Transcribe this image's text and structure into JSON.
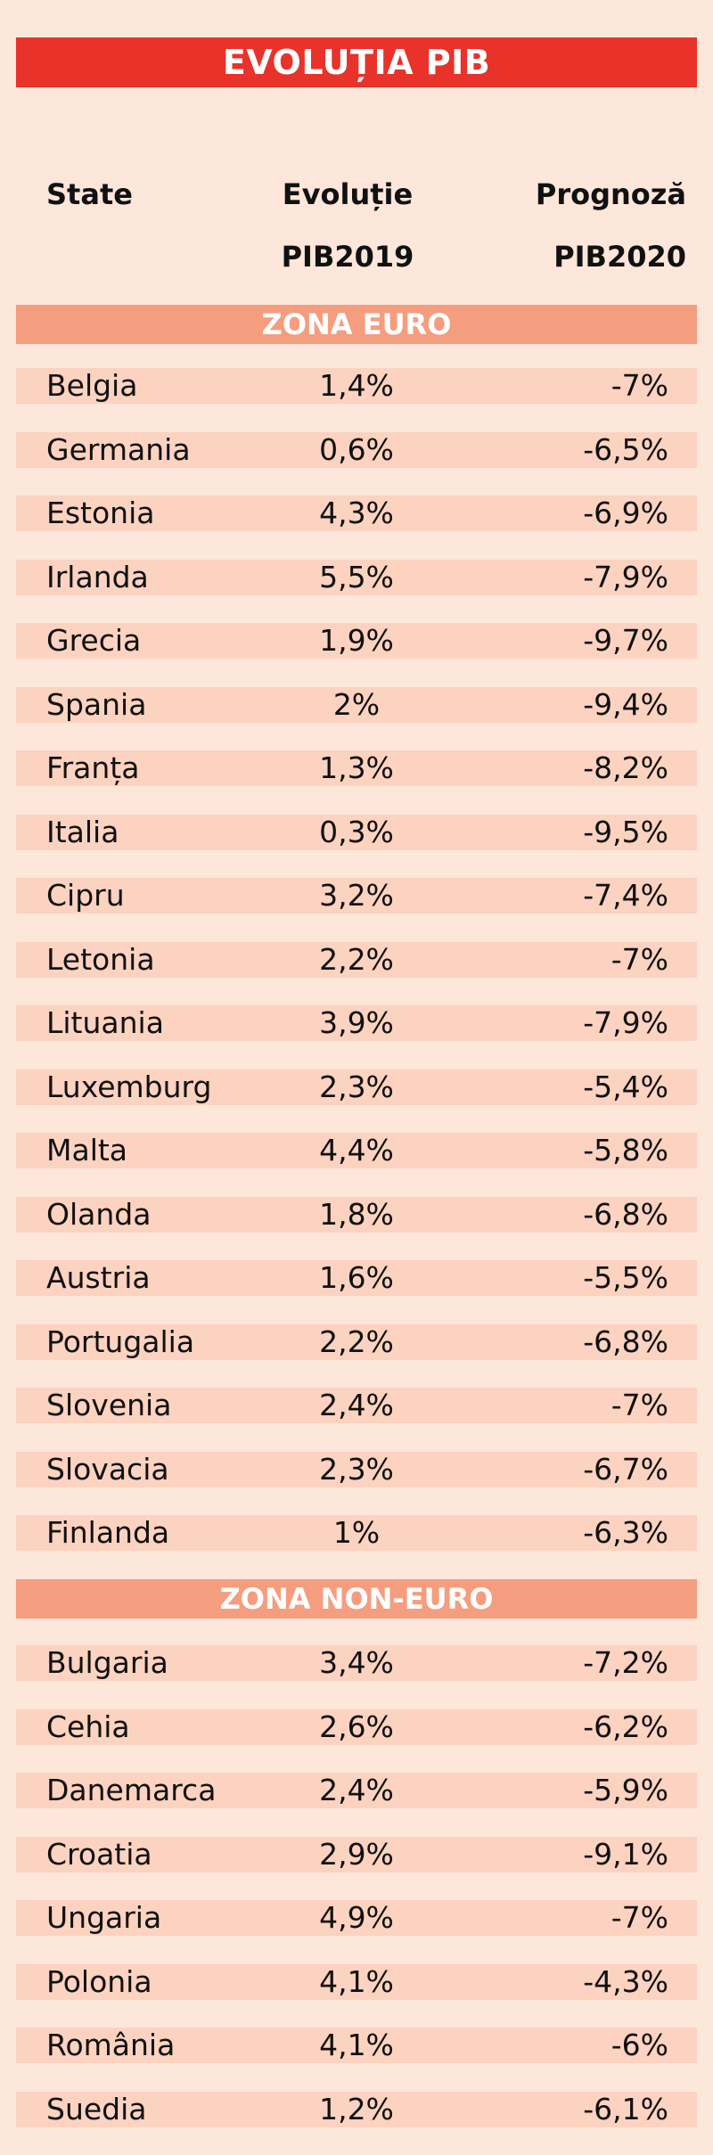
{
  "title": "EVOLUȚIA PIB",
  "header": {
    "state": "State",
    "col1_line1": "Evoluție",
    "col1_line2": "PIB2019",
    "col2_line1": "Prognoză",
    "col2_line2": "PIB2020"
  },
  "chart_data": {
    "type": "table",
    "title": "EVOLUȚIA PIB",
    "columns": [
      "State",
      "Evoluție PIB2019",
      "Prognoză PIB2020"
    ],
    "sections": [
      {
        "name": "ZONA EURO",
        "rows": [
          {
            "state": "Belgia",
            "gdp2019": "1,4%",
            "forecast2020": "-7%"
          },
          {
            "state": "Germania",
            "gdp2019": "0,6%",
            "forecast2020": "-6,5%"
          },
          {
            "state": "Estonia",
            "gdp2019": "4,3%",
            "forecast2020": "-6,9%"
          },
          {
            "state": "Irlanda",
            "gdp2019": "5,5%",
            "forecast2020": "-7,9%"
          },
          {
            "state": "Grecia",
            "gdp2019": "1,9%",
            "forecast2020": "-9,7%"
          },
          {
            "state": "Spania",
            "gdp2019": "2%",
            "forecast2020": "-9,4%"
          },
          {
            "state": "Franța",
            "gdp2019": "1,3%",
            "forecast2020": "-8,2%"
          },
          {
            "state": "Italia",
            "gdp2019": "0,3%",
            "forecast2020": "-9,5%"
          },
          {
            "state": "Cipru",
            "gdp2019": "3,2%",
            "forecast2020": "-7,4%"
          },
          {
            "state": "Letonia",
            "gdp2019": "2,2%",
            "forecast2020": "-7%"
          },
          {
            "state": "Lituania",
            "gdp2019": "3,9%",
            "forecast2020": "-7,9%"
          },
          {
            "state": "Luxemburg",
            "gdp2019": "2,3%",
            "forecast2020": "-5,4%"
          },
          {
            "state": "Malta",
            "gdp2019": "4,4%",
            "forecast2020": "-5,8%"
          },
          {
            "state": "Olanda",
            "gdp2019": "1,8%",
            "forecast2020": "-6,8%"
          },
          {
            "state": "Austria",
            "gdp2019": "1,6%",
            "forecast2020": "-5,5%"
          },
          {
            "state": "Portugalia",
            "gdp2019": "2,2%",
            "forecast2020": "-6,8%"
          },
          {
            "state": "Slovenia",
            "gdp2019": "2,4%",
            "forecast2020": "-7%"
          },
          {
            "state": "Slovacia",
            "gdp2019": "2,3%",
            "forecast2020": "-6,7%"
          },
          {
            "state": "Finlanda",
            "gdp2019": "1%",
            "forecast2020": "-6,3%"
          }
        ]
      },
      {
        "name": "ZONA NON-EURO",
        "rows": [
          {
            "state": "Bulgaria",
            "gdp2019": "3,4%",
            "forecast2020": "-7,2%"
          },
          {
            "state": "Cehia",
            "gdp2019": "2,6%",
            "forecast2020": "-6,2%"
          },
          {
            "state": "Danemarca",
            "gdp2019": "2,4%",
            "forecast2020": "-5,9%"
          },
          {
            "state": "Croatia",
            "gdp2019": "2,9%",
            "forecast2020": "-9,1%"
          },
          {
            "state": "Ungaria",
            "gdp2019": "4,9%",
            "forecast2020": "-7%"
          },
          {
            "state": "Polonia",
            "gdp2019": "4,1%",
            "forecast2020": "-4,3%"
          },
          {
            "state": "România",
            "gdp2019": "4,1%",
            "forecast2020": "-6%"
          },
          {
            "state": "Suedia",
            "gdp2019": "1,2%",
            "forecast2020": "-6,1%"
          }
        ]
      }
    ]
  }
}
